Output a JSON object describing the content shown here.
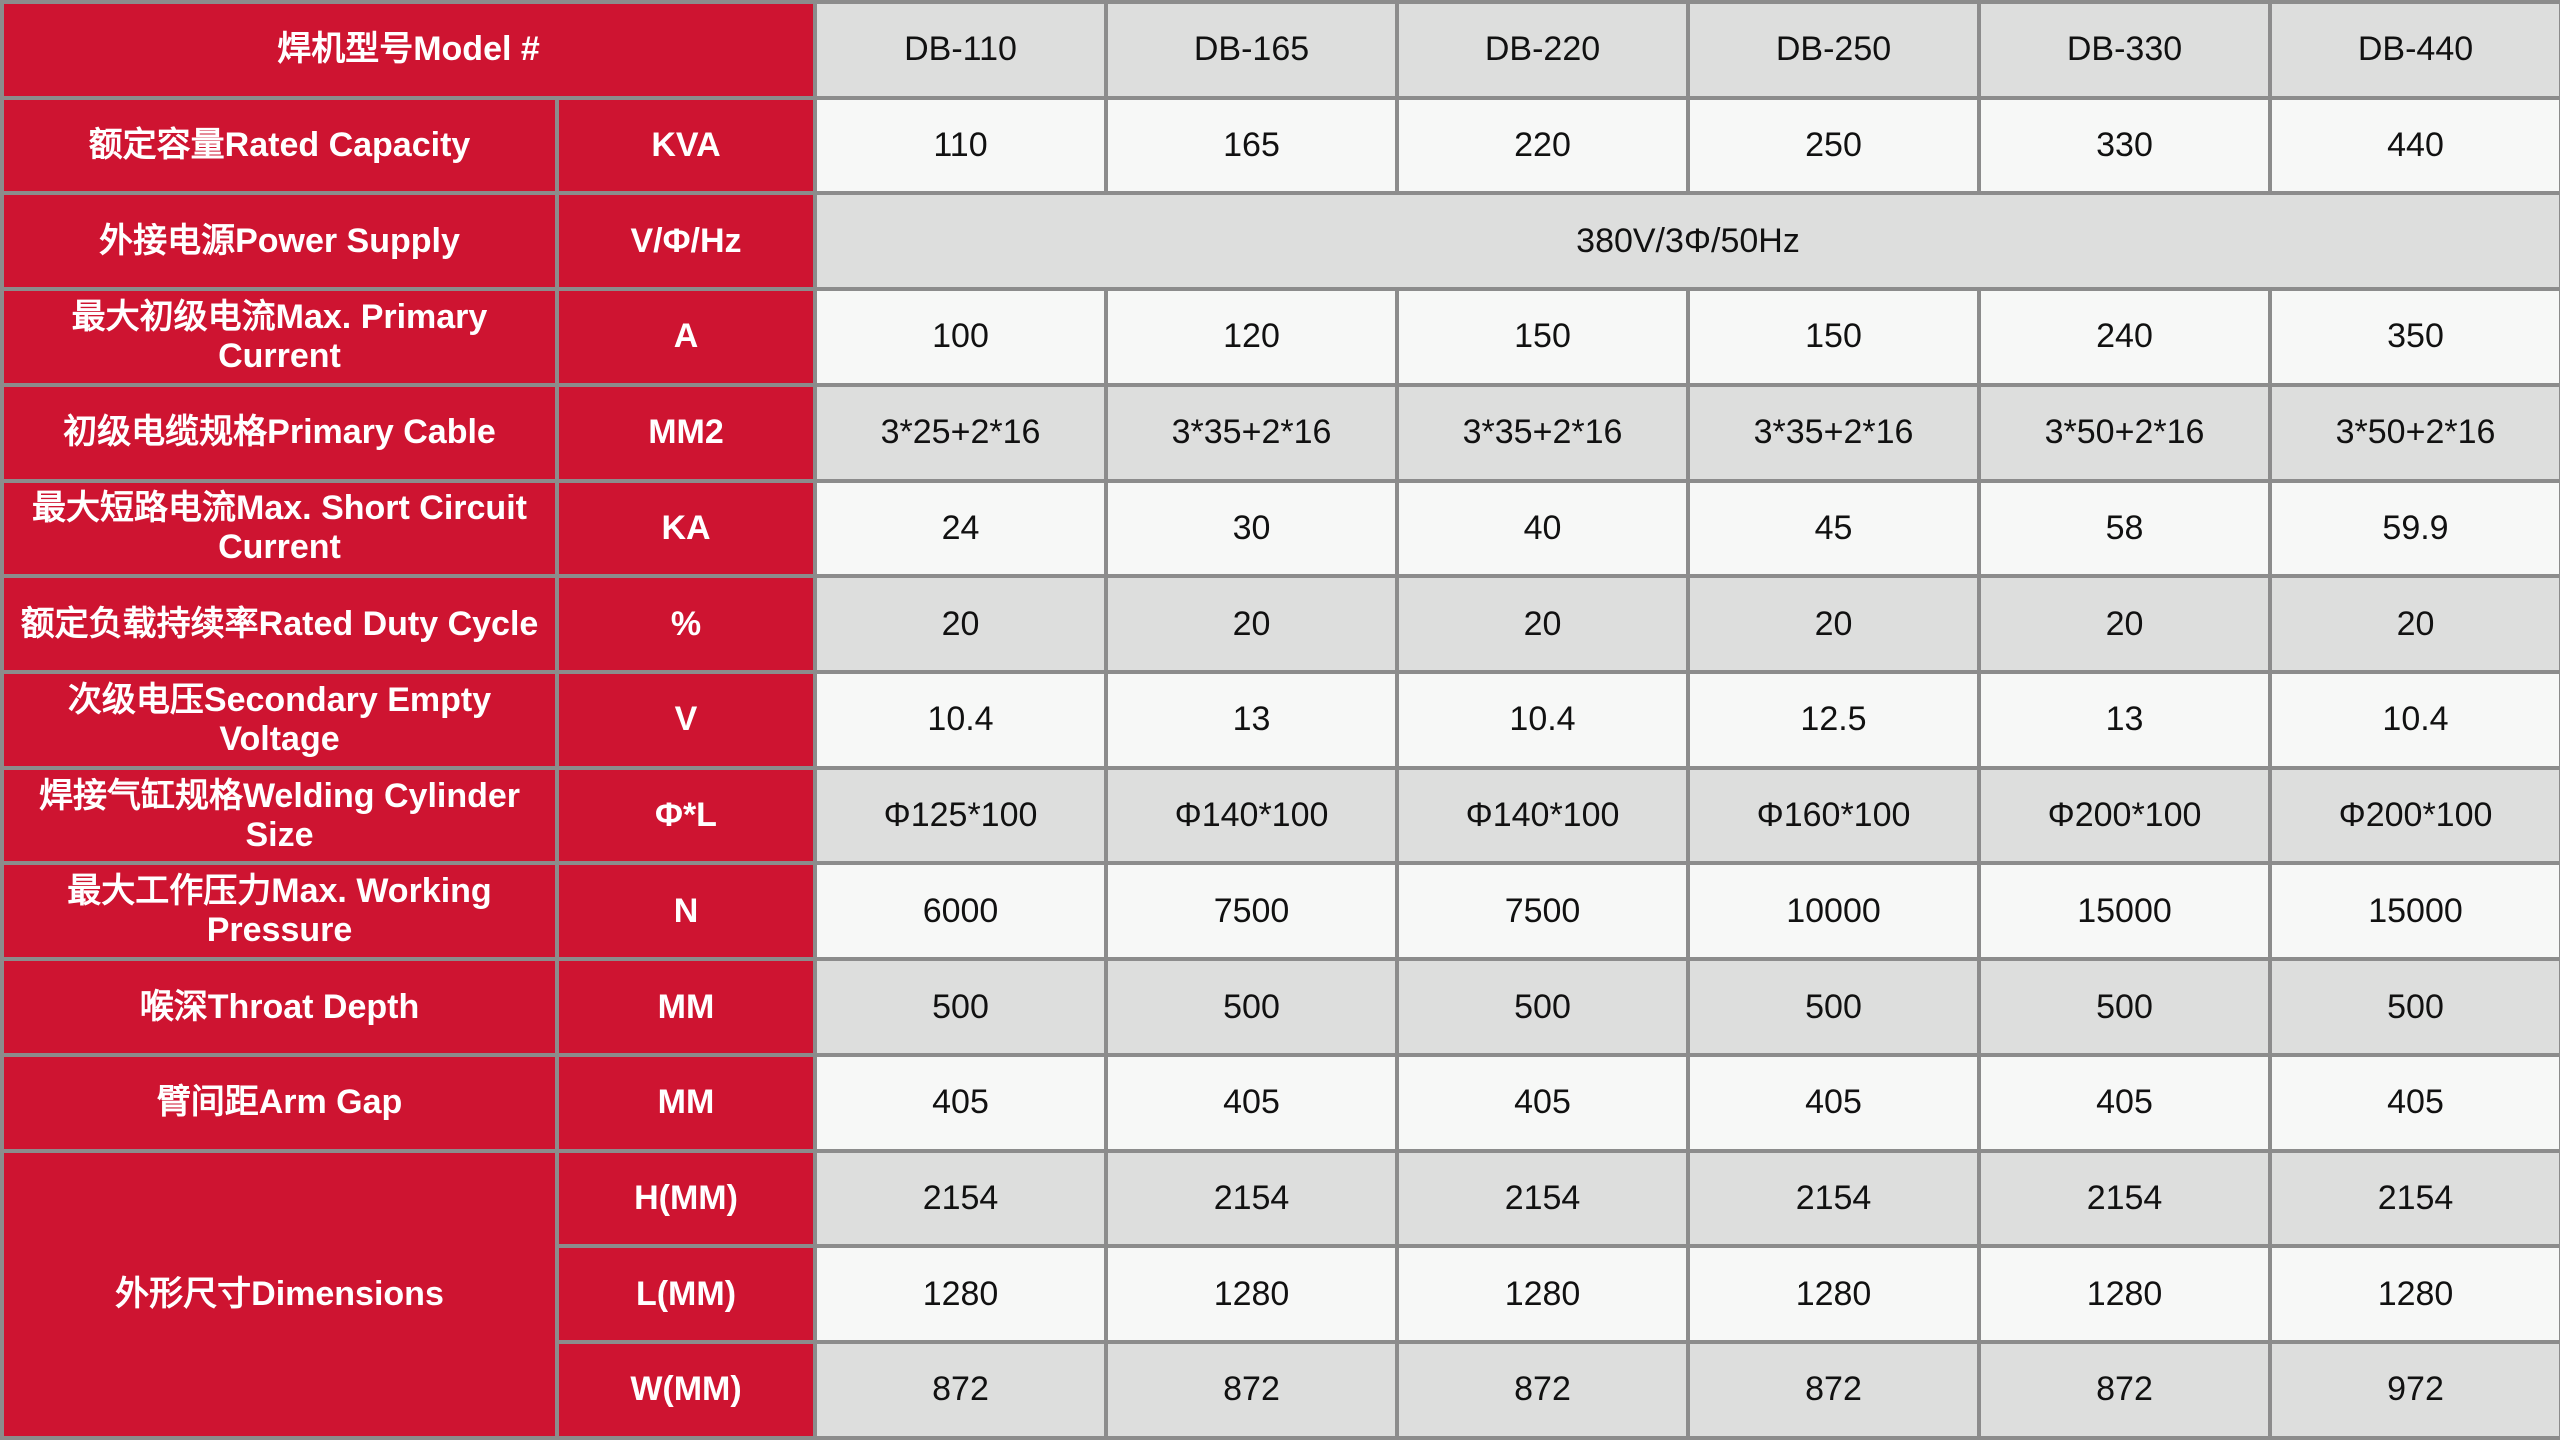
{
  "colors": {
    "header_red": "#CE1431",
    "row_gray": "#DDDEDD",
    "row_white": "#F7F8F7",
    "border": "#8C8C8C"
  },
  "header": {
    "label": "焊机型号Model #",
    "models": [
      "DB-110",
      "DB-165",
      "DB-220",
      "DB-250",
      "DB-330",
      "DB-440"
    ]
  },
  "rows": [
    {
      "label": "额定容量Rated Capacity",
      "unit": "KVA",
      "values": [
        "110",
        "165",
        "220",
        "250",
        "330",
        "440"
      ]
    },
    {
      "label": "外接电源Power Supply",
      "unit": "V/Φ/Hz",
      "merged": "380V/3Φ/50Hz"
    },
    {
      "label": "最大初级电流Max. Primary Current",
      "unit": "A",
      "values": [
        "100",
        "120",
        "150",
        "150",
        "240",
        "350"
      ]
    },
    {
      "label": "初级电缆规格Primary Cable",
      "unit": "MM2",
      "values": [
        "3*25+2*16",
        "3*35+2*16",
        "3*35+2*16",
        "3*35+2*16",
        "3*50+2*16",
        "3*50+2*16"
      ]
    },
    {
      "label": "最大短路电流Max. Short Circuit Current",
      "unit": "KA",
      "values": [
        "24",
        "30",
        "40",
        "45",
        "58",
        "59.9"
      ]
    },
    {
      "label": "额定负载持续率Rated Duty Cycle",
      "unit": "%",
      "values": [
        "20",
        "20",
        "20",
        "20",
        "20",
        "20"
      ]
    },
    {
      "label": "次级电压Secondary Empty Voltage",
      "unit": "V",
      "values": [
        "10.4",
        "13",
        "10.4",
        "12.5",
        "13",
        "10.4"
      ]
    },
    {
      "label": "焊接气缸规格Welding Cylinder Size",
      "unit": "Φ*L",
      "values": [
        "Φ125*100",
        "Φ140*100",
        "Φ140*100",
        "Φ160*100",
        "Φ200*100",
        "Φ200*100"
      ]
    },
    {
      "label": "最大工作压力Max. Working Pressure",
      "unit": "N",
      "values": [
        "6000",
        "7500",
        "7500",
        "10000",
        "15000",
        "15000"
      ]
    },
    {
      "label": "喉深Throat Depth",
      "unit": "MM",
      "values": [
        "500",
        "500",
        "500",
        "500",
        "500",
        "500"
      ]
    },
    {
      "label": "臂间距Arm Gap",
      "unit": "MM",
      "values": [
        "405",
        "405",
        "405",
        "405",
        "405",
        "405"
      ]
    }
  ],
  "dimensions": {
    "label": "外形尺寸Dimensions",
    "rows": [
      {
        "unit": "H(MM)",
        "values": [
          "2154",
          "2154",
          "2154",
          "2154",
          "2154",
          "2154"
        ]
      },
      {
        "unit": "L(MM)",
        "values": [
          "1280",
          "1280",
          "1280",
          "1280",
          "1280",
          "1280"
        ]
      },
      {
        "unit": "W(MM)",
        "values": [
          "872",
          "872",
          "872",
          "872",
          "872",
          "972"
        ]
      }
    ]
  }
}
